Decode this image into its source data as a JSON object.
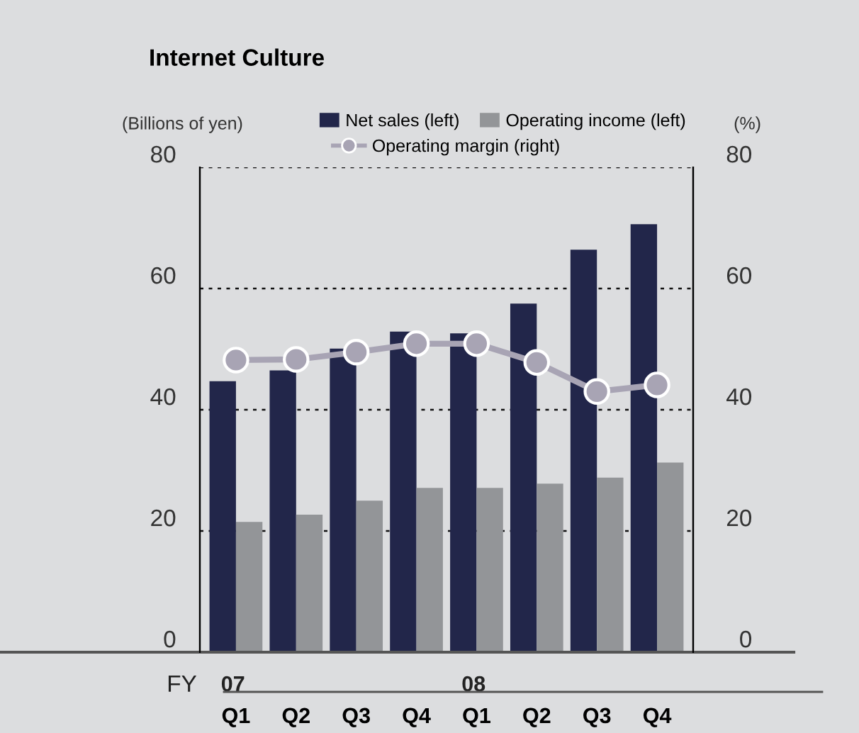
{
  "chart_data": {
    "type": "bar",
    "title": "Internet Culture",
    "ylabel": "(Billions of yen)",
    "y2label": "(%)",
    "categories": [
      "Q1",
      "Q2",
      "Q3",
      "Q4",
      "Q1",
      "Q2",
      "Q3",
      "Q4"
    ],
    "series": [
      {
        "name": "Net sales (left)",
        "color": "#22264a",
        "values": [
          44.7,
          46.5,
          50.1,
          52.9,
          52.6,
          57.5,
          66.4,
          70.6
        ]
      },
      {
        "name": "Operating income (left)",
        "color": "#939598",
        "values": [
          21.5,
          22.7,
          25.0,
          27.1,
          27.1,
          27.8,
          28.8,
          31.3
        ]
      },
      {
        "name": "Operating margin (right)",
        "color": "#a8a4b4",
        "type": "line",
        "axis": "y2",
        "marker": "circle",
        "values": [
          48.2,
          48.3,
          49.5,
          50.9,
          50.9,
          47.8,
          43.0,
          44.1
        ]
      }
    ],
    "ylim": [
      0,
      80
    ],
    "yticks": [
      0,
      20,
      40,
      60,
      80
    ],
    "y2lim": [
      0,
      80
    ],
    "y2ticks": [
      0,
      20,
      40,
      60,
      80
    ],
    "grid": "y",
    "legend": "top",
    "annotations": [
      "FY",
      "07",
      "08"
    ]
  }
}
